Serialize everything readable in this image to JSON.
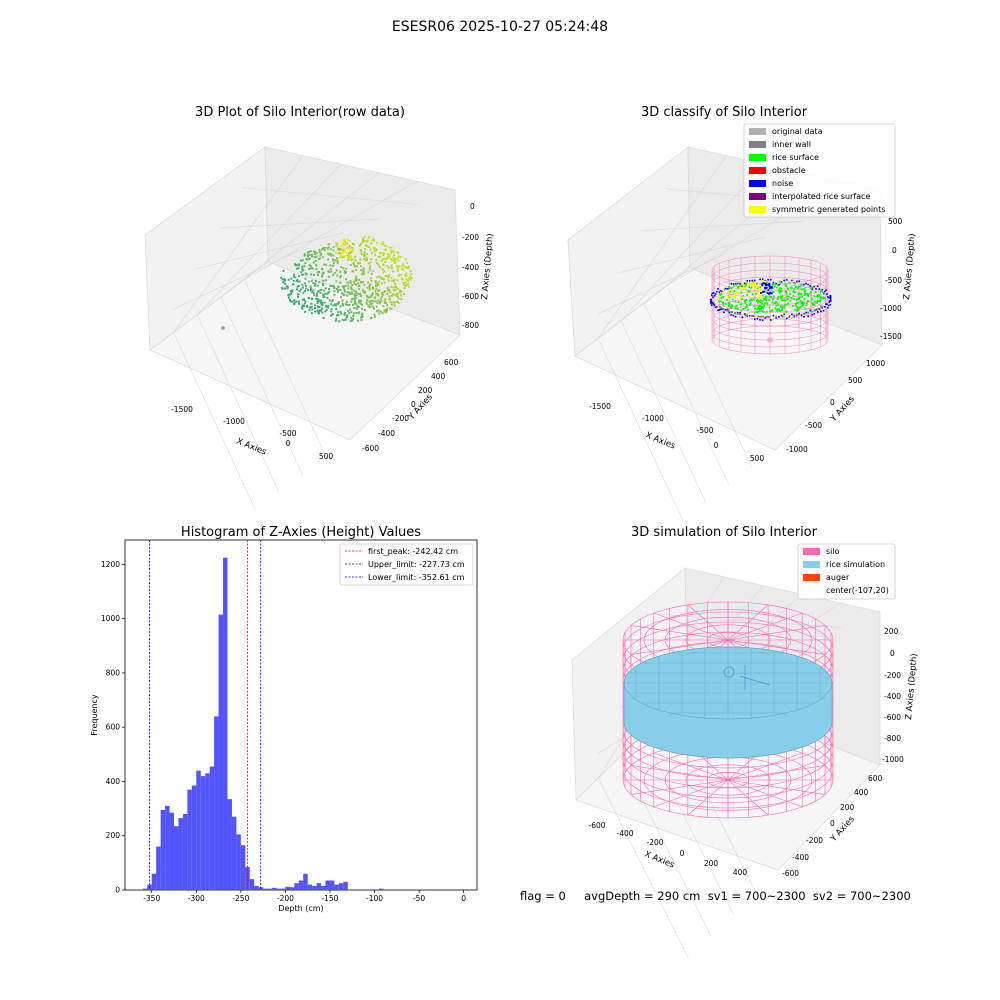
{
  "suptitle": "ESESR06 2025-10-27 05:24:48",
  "footer": "flag = 0     avgDepth = 290 cm  sv1 = 700~2300  sv2 = 700~2300",
  "colors": {
    "raw_low": "#3aa777",
    "raw_high": "#c9e32a",
    "original": "#b0b0b0",
    "inner_wall": "#808080",
    "rice": "#00ff00",
    "obstacle": "#ff0000",
    "noise": "#0000ff",
    "interp": "#800080",
    "symmetric": "#ffff00",
    "silo": "#ff69b4",
    "rice_sim": "#87ceeb",
    "auger": "#ff4500",
    "hist_bar": "#4b4bff",
    "peak_line": "#ff0000",
    "limit_line": "#0000cc"
  },
  "chart_data": [
    {
      "type": "scatter3d",
      "title": "3D Plot of Silo Interior(row data)",
      "xlabel": "X Axies",
      "ylabel": "Y Axies",
      "zlabel": "Z Axies (Depth)",
      "xticks": [
        "-1500",
        "-1000",
        "-500",
        "0",
        "500"
      ],
      "yticks": [
        "-600",
        "-400",
        "-200",
        "0",
        "200",
        "400",
        "600"
      ],
      "zticks": [
        "0",
        "-200",
        "-400",
        "-600",
        "-800"
      ]
    },
    {
      "type": "scatter3d",
      "title": "3D classify of Silo Interior",
      "xlabel": "X Axies",
      "ylabel": "Y Axies",
      "zlabel": "Z Axies (Depth)",
      "xticks": [
        "-1500",
        "-1000",
        "-500",
        "0",
        "500"
      ],
      "yticks": [
        "-1000",
        "-500",
        "0",
        "500",
        "1000"
      ],
      "zticks": [
        "500",
        "0",
        "-500",
        "-1000",
        "-1500"
      ],
      "legend": [
        "original data",
        "inner wall",
        "rice surface",
        "obstacle",
        "noise",
        "interpolated rice surface",
        "symmetric generated points"
      ],
      "legend_loc": "top-right"
    },
    {
      "type": "bar",
      "title": "Histogram of Z-Axies (Height) Values",
      "xlabel": "Depth (cm)",
      "ylabel": "Frequency",
      "xlim": [
        -380,
        15
      ],
      "ylim": [
        0,
        1290
      ],
      "xticks": [
        -350,
        -300,
        -250,
        -200,
        -150,
        -100,
        -50,
        0
      ],
      "yticks": [
        0,
        200,
        400,
        600,
        800,
        1000,
        1200
      ],
      "bin_start": -360,
      "bin_width": 5,
      "values": [
        5,
        20,
        60,
        160,
        295,
        310,
        285,
        235,
        265,
        280,
        370,
        385,
        440,
        420,
        430,
        455,
        640,
        1015,
        1225,
        335,
        270,
        205,
        165,
        85,
        40,
        15,
        10,
        5,
        5,
        8,
        5,
        5,
        12,
        10,
        25,
        35,
        60,
        20,
        15,
        25,
        15,
        35,
        35,
        20,
        25,
        30,
        0,
        0,
        0,
        0,
        0,
        0,
        0,
        5
      ],
      "vlines": [
        {
          "label": "first_peak: -242.42 cm",
          "x": -242.42,
          "color": "#ff0000"
        },
        {
          "label": "Upper_limit: -227.73 cm",
          "x": -227.73,
          "color": "#0000cc"
        },
        {
          "label": "Lower_limit: -352.61 cm",
          "x": -352.61,
          "color": "#0000cc"
        }
      ],
      "legend_loc": "top-right"
    },
    {
      "type": "surface3d",
      "title": "3D simulation of Silo Interior",
      "xlabel": "X Axies",
      "ylabel": "Y Axies",
      "zlabel": "Z Axies (Depth)",
      "xticks": [
        "-600",
        "-400",
        "-200",
        "0",
        "200",
        "400"
      ],
      "yticks": [
        "-600",
        "-400",
        "-200",
        "0",
        "200",
        "400",
        "600"
      ],
      "zticks": [
        "200",
        "0",
        "-200",
        "-400",
        "-600",
        "-800",
        "-1000"
      ],
      "legend": [
        "silo",
        "rice simulation",
        "auger",
        "center(-107,20)"
      ],
      "legend_loc": "top-right"
    }
  ]
}
